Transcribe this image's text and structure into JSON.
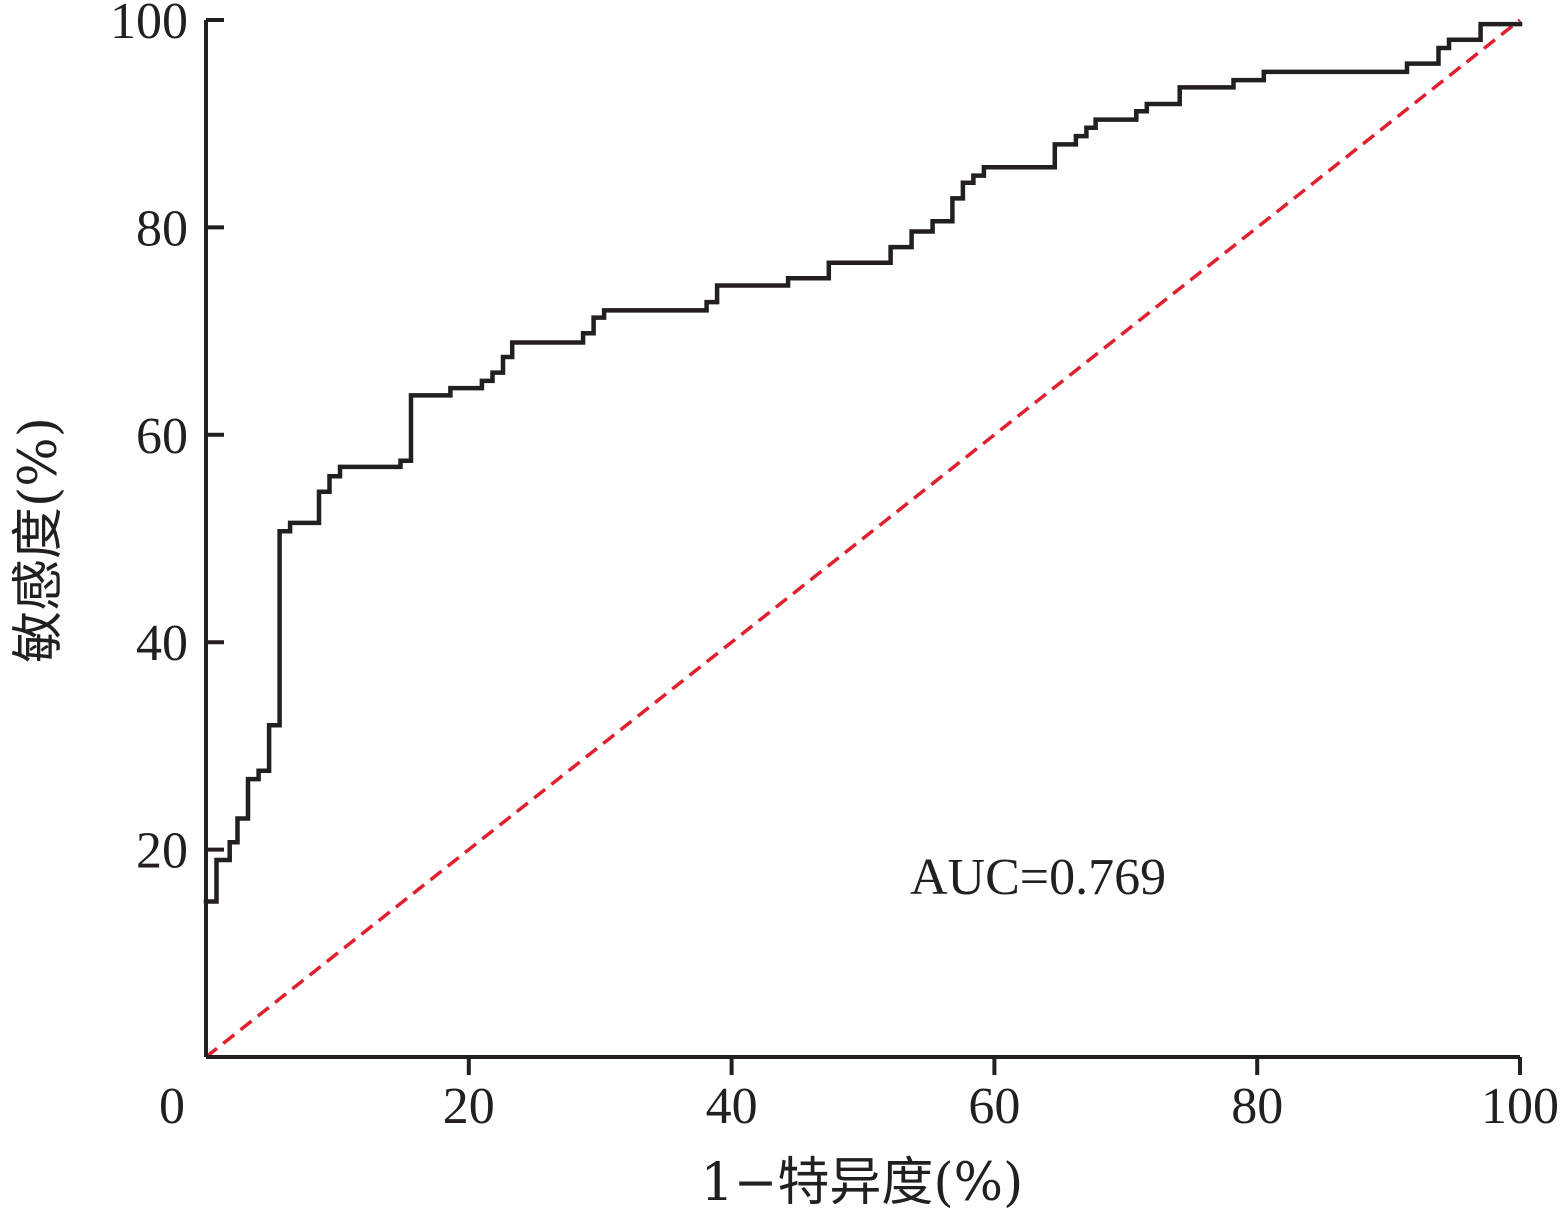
{
  "chart_data": {
    "type": "line",
    "title": "",
    "xlabel": "1−特异度(%)",
    "ylabel": "敏感度(%)",
    "xlim": [
      0,
      100
    ],
    "ylim": [
      0,
      100
    ],
    "x_ticks": [
      "0",
      "20",
      "40",
      "60",
      "80",
      "100"
    ],
    "y_ticks": [
      "20",
      "40",
      "60",
      "80",
      "100"
    ],
    "grid": false,
    "annotation": "AUC=0.769",
    "colors": {
      "roc": "#231f20",
      "reference": "#e0202e",
      "axis": "#231f20"
    },
    "series": [
      {
        "type": "step",
        "points": [
          [
            0,
            15
          ],
          [
            0.8,
            15
          ],
          [
            0.8,
            19
          ],
          [
            1.8,
            19
          ],
          [
            1.8,
            20.7
          ],
          [
            2.4,
            20.7
          ],
          [
            2.4,
            23
          ],
          [
            3.2,
            23
          ],
          [
            3.2,
            26.8
          ],
          [
            4,
            26.8
          ],
          [
            4,
            27.6
          ],
          [
            4.8,
            27.6
          ],
          [
            4.8,
            32
          ],
          [
            5.6,
            32
          ],
          [
            5.6,
            50.7
          ],
          [
            6.4,
            50.7
          ],
          [
            6.4,
            51.5
          ],
          [
            8.6,
            51.5
          ],
          [
            8.6,
            54.5
          ],
          [
            9.4,
            54.5
          ],
          [
            9.4,
            56
          ],
          [
            10.2,
            56
          ],
          [
            10.2,
            56.9
          ],
          [
            14.8,
            56.9
          ],
          [
            14.8,
            57.5
          ],
          [
            15.6,
            57.5
          ],
          [
            15.6,
            63.8
          ],
          [
            18.6,
            63.8
          ],
          [
            18.6,
            64.5
          ],
          [
            21,
            64.5
          ],
          [
            21,
            65.2
          ],
          [
            21.8,
            65.2
          ],
          [
            21.8,
            66
          ],
          [
            22.6,
            66
          ],
          [
            22.6,
            67.5
          ],
          [
            23.3,
            67.5
          ],
          [
            23.3,
            68.9
          ],
          [
            28.7,
            68.9
          ],
          [
            28.7,
            69.8
          ],
          [
            29.5,
            69.8
          ],
          [
            29.5,
            71.3
          ],
          [
            30.3,
            71.3
          ],
          [
            30.3,
            72
          ],
          [
            38.1,
            72
          ],
          [
            38.1,
            72.8
          ],
          [
            38.9,
            72.8
          ],
          [
            38.9,
            74.4
          ],
          [
            44.3,
            74.4
          ],
          [
            44.3,
            75.1
          ],
          [
            47.4,
            75.1
          ],
          [
            47.4,
            76.6
          ],
          [
            52.1,
            76.6
          ],
          [
            52.1,
            78.1
          ],
          [
            53.7,
            78.1
          ],
          [
            53.7,
            79.6
          ],
          [
            55.3,
            79.6
          ],
          [
            55.3,
            80.6
          ],
          [
            56.8,
            80.6
          ],
          [
            56.8,
            82.8
          ],
          [
            57.6,
            82.8
          ],
          [
            57.6,
            84.3
          ],
          [
            58.4,
            84.3
          ],
          [
            58.4,
            85
          ],
          [
            59.2,
            85
          ],
          [
            59.2,
            85.8
          ],
          [
            64.6,
            85.8
          ],
          [
            64.6,
            88
          ],
          [
            66.2,
            88
          ],
          [
            66.2,
            88.8
          ],
          [
            67,
            88.8
          ],
          [
            67,
            89.6
          ],
          [
            67.7,
            89.6
          ],
          [
            67.7,
            90.4
          ],
          [
            70.8,
            90.4
          ],
          [
            70.8,
            91.2
          ],
          [
            71.6,
            91.2
          ],
          [
            71.6,
            91.9
          ],
          [
            74.1,
            91.9
          ],
          [
            74.1,
            93.5
          ],
          [
            78.2,
            93.5
          ],
          [
            78.2,
            94.2
          ],
          [
            80.5,
            94.2
          ],
          [
            80.5,
            95
          ],
          [
            91.4,
            95
          ],
          [
            91.4,
            95.8
          ],
          [
            93.8,
            95.8
          ],
          [
            93.8,
            97.3
          ],
          [
            94.6,
            97.3
          ],
          [
            94.6,
            98.1
          ],
          [
            97,
            98.1
          ],
          [
            97,
            99.6
          ],
          [
            100,
            99.6
          ]
        ]
      },
      {
        "type": "reference",
        "points": [
          [
            0,
            0
          ],
          [
            100,
            100
          ]
        ]
      }
    ]
  }
}
